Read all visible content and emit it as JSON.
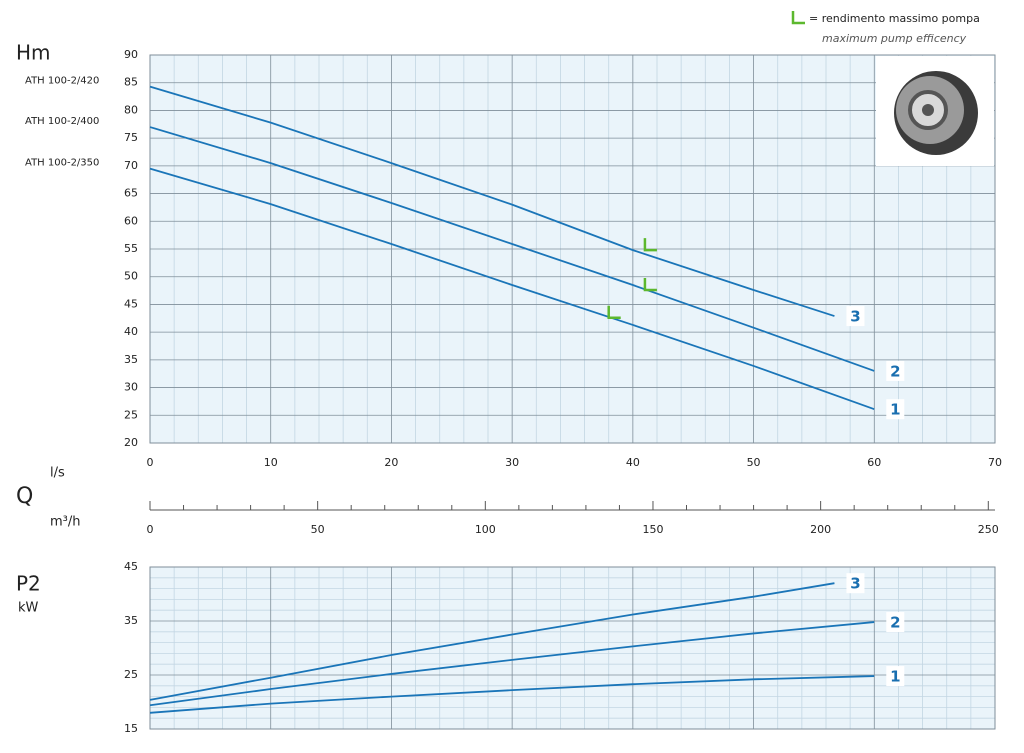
{
  "chart_data": [
    {
      "type": "line",
      "y_label": "Hm",
      "x_label": "l/s",
      "xlim": [
        0,
        70
      ],
      "xticks": [
        0,
        10,
        20,
        30,
        40,
        50,
        60,
        70
      ],
      "minor_xticks": [
        2,
        4,
        6,
        8,
        12,
        14,
        16,
        18,
        22,
        24,
        26,
        28,
        32,
        34,
        36,
        38,
        42,
        44,
        46,
        48,
        52,
        54,
        56,
        58,
        62,
        64,
        66,
        68
      ],
      "ylim": [
        20,
        90
      ],
      "yticks": [
        20,
        25,
        30,
        35,
        40,
        45,
        50,
        55,
        60,
        65,
        70,
        75,
        80,
        85,
        90
      ],
      "grid": true,
      "series": [
        {
          "name": "3",
          "model": "ATH 100-2/420",
          "color": "#1a75b8",
          "x": [
            0,
            10,
            20,
            30,
            40,
            50,
            56.7
          ],
          "values": [
            84.3,
            77.8,
            70.5,
            63,
            54.8,
            47.6,
            42.9
          ]
        },
        {
          "name": "2",
          "model": "ATH 100-2/400",
          "color": "#1a75b8",
          "x": [
            0,
            10,
            20,
            30,
            40,
            50,
            60
          ],
          "values": [
            77,
            70.5,
            63.3,
            55.9,
            48.5,
            40.8,
            33
          ]
        },
        {
          "name": "1",
          "model": "ATH 100-2/350",
          "color": "#1a75b8",
          "x": [
            0,
            10,
            20,
            30,
            40,
            50,
            60
          ],
          "values": [
            69.5,
            63.1,
            55.9,
            48.5,
            41.3,
            33.9,
            26.1
          ]
        }
      ],
      "efficiency_points": {
        "color": "#5cb82e",
        "x": [
          41,
          41,
          38
        ],
        "values": [
          54.8,
          47.6,
          42.6
        ]
      }
    },
    {
      "type": "line",
      "y_label": "P2",
      "y_unit": "kW",
      "xlim": [
        0,
        70
      ],
      "xticks": [
        0,
        10,
        20,
        30,
        40,
        50,
        60,
        70
      ],
      "minor_xticks": [
        2,
        4,
        6,
        8,
        12,
        14,
        16,
        18,
        22,
        24,
        26,
        28,
        32,
        34,
        36,
        38,
        42,
        44,
        46,
        48,
        52,
        54,
        56,
        58,
        62,
        64,
        66,
        68
      ],
      "ylim": [
        15,
        45
      ],
      "yticks": [
        15,
        25,
        35,
        45
      ],
      "minor_yticks": [
        17,
        19,
        21,
        23,
        27,
        29,
        31,
        33,
        37,
        39,
        41,
        43
      ],
      "grid": true,
      "series": [
        {
          "name": "3",
          "color": "#1a75b8",
          "x": [
            0,
            10,
            20,
            30,
            40,
            50,
            56.7
          ],
          "values": [
            20.4,
            24.5,
            28.7,
            32.5,
            36.2,
            39.5,
            42
          ]
        },
        {
          "name": "2",
          "color": "#1a75b8",
          "x": [
            0,
            10,
            20,
            30,
            40,
            50,
            60
          ],
          "values": [
            19.4,
            22.4,
            25.2,
            27.8,
            30.3,
            32.7,
            34.8
          ]
        },
        {
          "name": "1",
          "color": "#1a75b8",
          "x": [
            0,
            10,
            20,
            30,
            40,
            50,
            60
          ],
          "values": [
            18,
            19.7,
            21,
            22.2,
            23.3,
            24.2,
            24.8
          ]
        }
      ]
    }
  ],
  "flow_axis": {
    "label": "Q",
    "unit": "m³/h",
    "xlim": [
      0,
      252
    ],
    "xticks": [
      0,
      50,
      100,
      150,
      200,
      250
    ],
    "minor_xticks": [
      10,
      20,
      30,
      40,
      60,
      70,
      80,
      90,
      110,
      120,
      130,
      140,
      160,
      170,
      180,
      190,
      210,
      220,
      230,
      240
    ]
  },
  "legend": {
    "text": "= rendimento massimo pompa",
    "subtext": "maximum pump efficency"
  }
}
